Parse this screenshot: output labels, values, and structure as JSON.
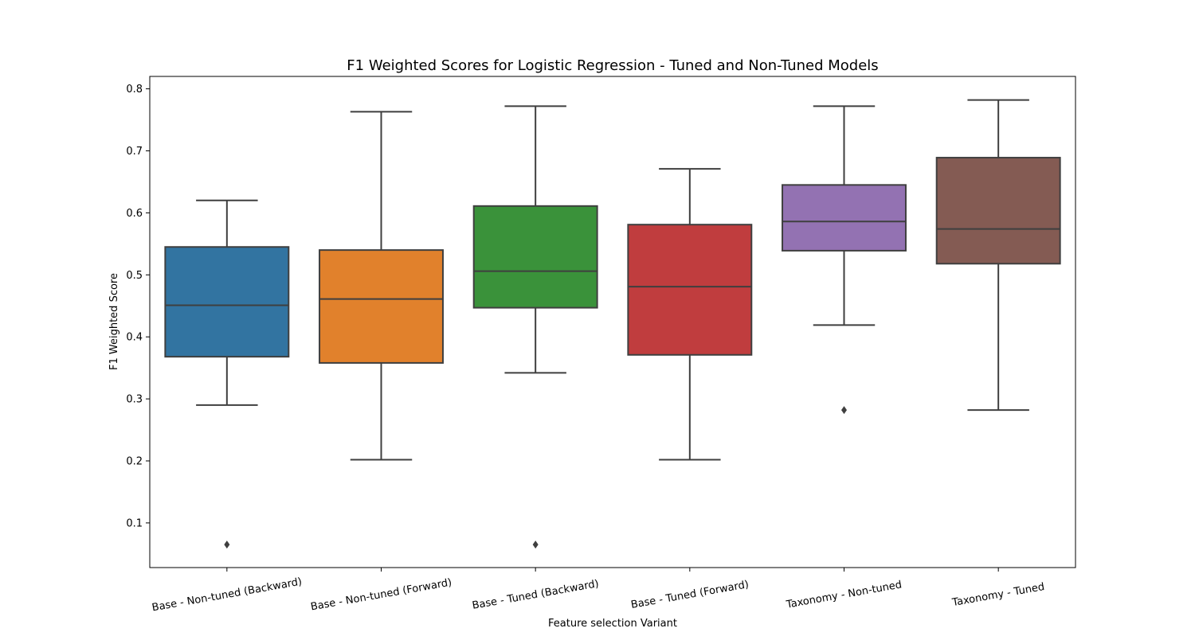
{
  "chart_data": {
    "type": "box",
    "title": "F1 Weighted Scores for Logistic Regression - Tuned and Non-Tuned Models",
    "xlabel": "Feature selection Variant",
    "ylabel": "F1 Weighted Score",
    "ylim": [
      0.028,
      0.82
    ],
    "yticks": [
      0.1,
      0.2,
      0.3,
      0.4,
      0.5,
      0.6,
      0.7,
      0.8
    ],
    "ytick_labels": [
      "0.1",
      "0.2",
      "0.3",
      "0.4",
      "0.5",
      "0.6",
      "0.7",
      "0.8"
    ],
    "grid": false,
    "categories": [
      "Base - Non-tuned (Backward)",
      "Base - Non-tuned (Forward)",
      "Base - Tuned (Backward)",
      "Base - Tuned (Forward)",
      "Taxonomy - Non-tuned",
      "Taxonomy - Tuned"
    ],
    "boxes": [
      {
        "whisker_low": 0.29,
        "q1": 0.368,
        "median": 0.451,
        "q3": 0.545,
        "whisker_high": 0.62,
        "outliers": [
          0.065
        ],
        "color": "#3274a1"
      },
      {
        "whisker_low": 0.202,
        "q1": 0.358,
        "median": 0.461,
        "q3": 0.54,
        "whisker_high": 0.763,
        "outliers": [],
        "color": "#e1812c"
      },
      {
        "whisker_low": 0.342,
        "q1": 0.447,
        "median": 0.506,
        "q3": 0.611,
        "whisker_high": 0.772,
        "outliers": [
          0.065
        ],
        "color": "#3a923a"
      },
      {
        "whisker_low": 0.202,
        "q1": 0.371,
        "median": 0.481,
        "q3": 0.581,
        "whisker_high": 0.671,
        "outliers": [],
        "color": "#c03d3e"
      },
      {
        "whisker_low": 0.419,
        "q1": 0.539,
        "median": 0.586,
        "q3": 0.645,
        "whisker_high": 0.772,
        "outliers": [
          0.282
        ],
        "color": "#9372b2"
      },
      {
        "whisker_low": 0.282,
        "q1": 0.518,
        "median": 0.574,
        "q3": 0.689,
        "whisker_high": 0.782,
        "outliers": [],
        "color": "#845b53"
      }
    ],
    "line_color": "#3f3f3f"
  }
}
